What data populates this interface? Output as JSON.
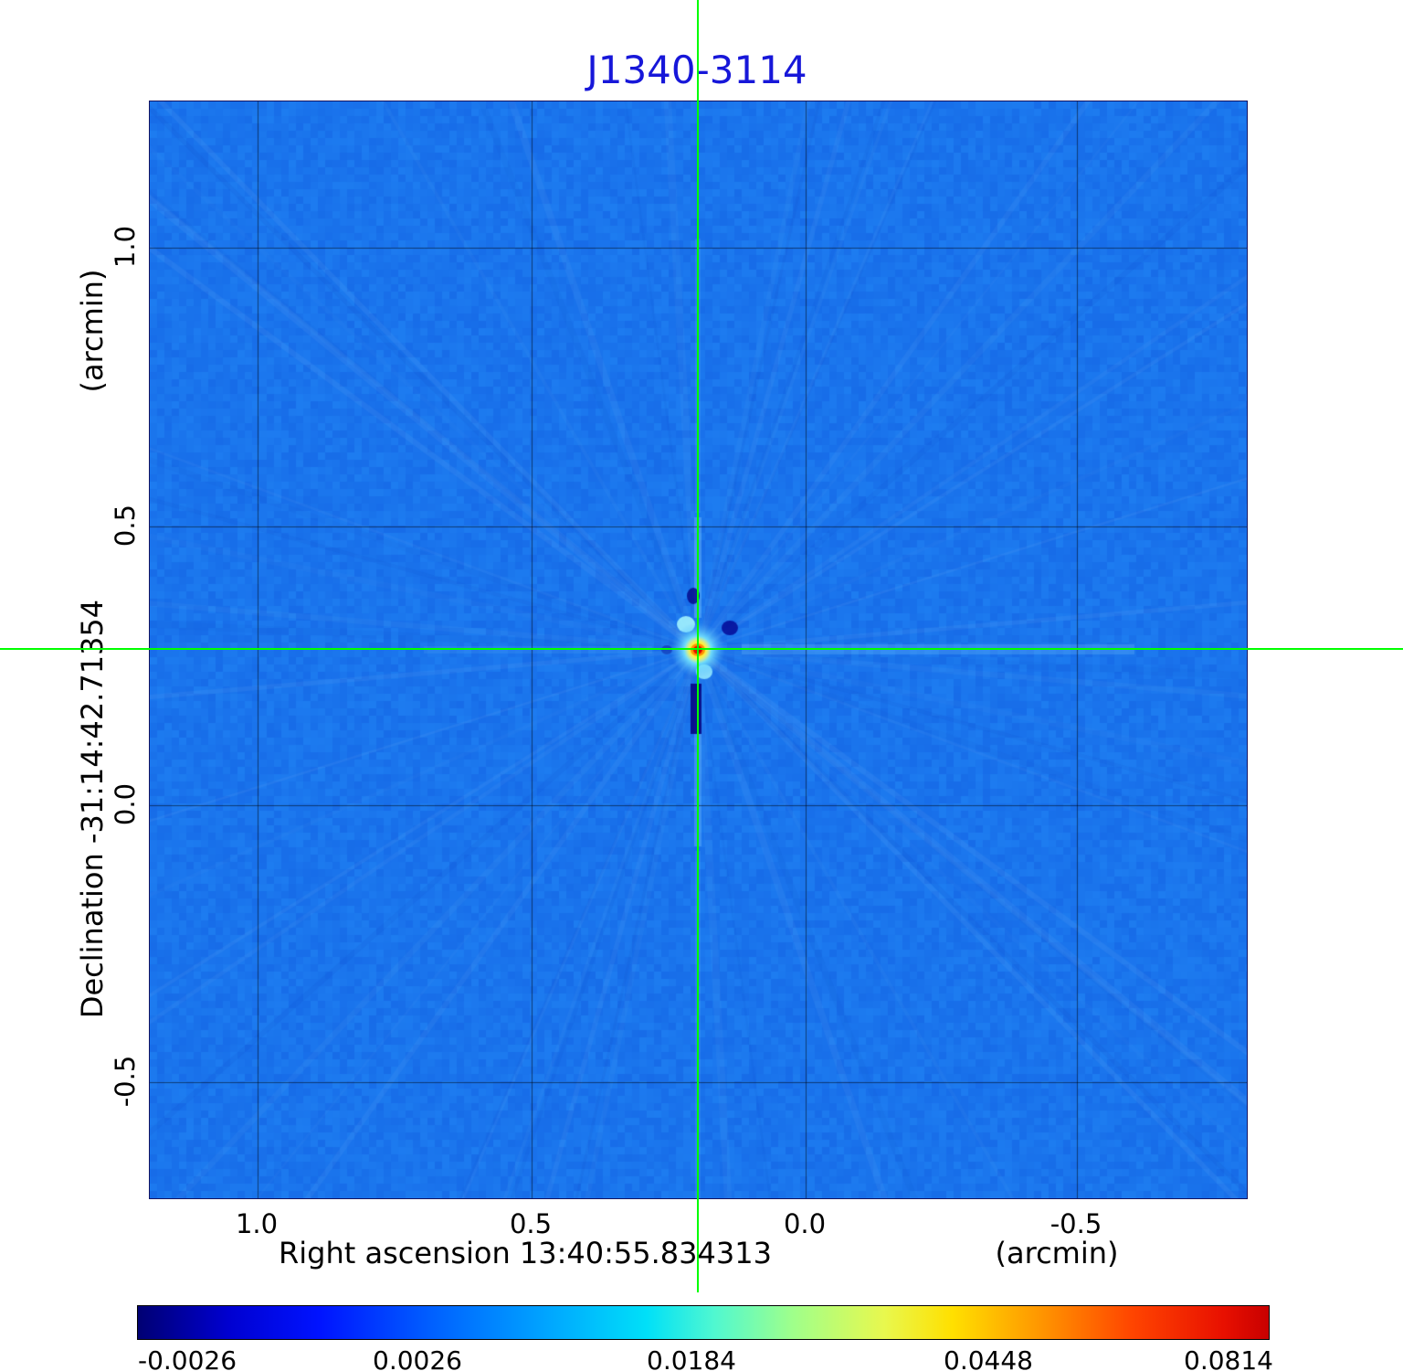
{
  "title": "J1340-3114",
  "axes": {
    "x_label": "Right ascension  13:40:55.834313",
    "x_unit": "(arcmin)",
    "y_label": "Declination  -31:14:42.71354",
    "y_unit": "(arcmin)",
    "x_ticks": [
      "1.0",
      "0.5",
      "0.0",
      "-0.5"
    ],
    "y_ticks": [
      "1.0",
      "0.5",
      "0.0",
      "-0.5"
    ]
  },
  "colorbar": {
    "ticks": [
      "-0.0026",
      "0.0026",
      "0.0184",
      "0.0448",
      "0.0814"
    ]
  },
  "chart_data": {
    "type": "heatmap",
    "title": "J1340-3114",
    "xlabel": "Right ascension 13:40:55.834313 (arcmin)",
    "ylabel": "Declination -31:14:42.71354 (arcmin)",
    "x_tick_values": [
      1.0,
      0.5,
      0.0,
      -0.5
    ],
    "y_tick_values": [
      1.0,
      0.5,
      0.0,
      -0.5
    ],
    "x_range": [
      1.2,
      -0.8
    ],
    "y_range": [
      -0.6,
      1.26
    ],
    "grid": true,
    "colormap": "jet",
    "colorbar_tick_values": [
      -0.0026,
      0.0026,
      0.0184,
      0.0448,
      0.0814
    ],
    "background_color": "#1a74ec",
    "title_color": "#1717d9",
    "crosshair_color": "#00ff00",
    "source": {
      "name": "J1340-3114",
      "ra": "13:40:55.834313",
      "dec": "-31:14:42.71354",
      "ra_offset_arcmin": 0.2,
      "dec_offset_arcmin": 0.28,
      "peak_value": 0.0814,
      "min_value": -0.0026
    }
  }
}
